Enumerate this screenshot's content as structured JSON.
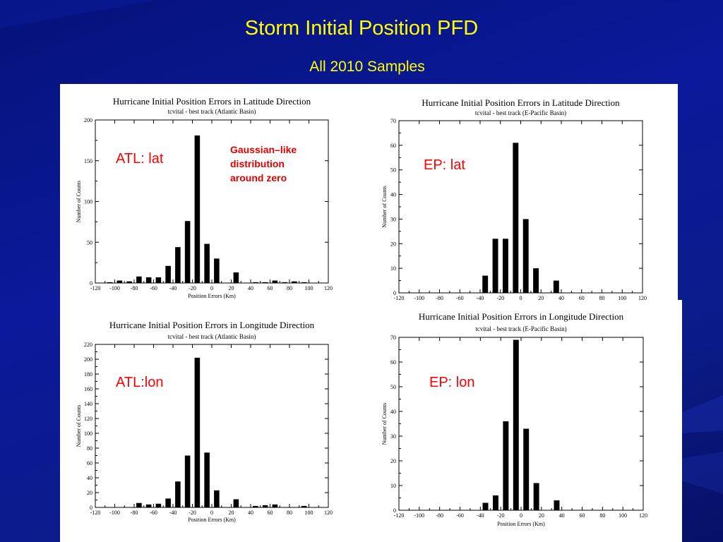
{
  "slide": {
    "title": "Storm Initial Position PFD",
    "subtitle": "All 2010 Samples"
  },
  "labels": {
    "atl_lat": "ATL: lat",
    "ep_lat": "EP: lat",
    "atl_lon": "ATL:lon",
    "ep_lon": "EP: lon",
    "note_line1": "Gaussian–like",
    "note_line2": "distribution",
    "note_line3": "around zero"
  },
  "colors": {
    "background": "#0a1a9a",
    "title": "#ffff00",
    "annotation": "#ff0000",
    "bars": "#000000"
  },
  "chart_data": [
    {
      "type": "bar",
      "title": "Hurricane Initial Position Errors in Latitude Direction",
      "subtitle": "tcvital - best track (Atlantic Basin)",
      "xlabel": "Position Errors (Km)",
      "ylabel": "Number of Counts",
      "xlim": [
        -120,
        120
      ],
      "ylim": [
        0,
        200
      ],
      "xticks": [
        -120,
        -100,
        -80,
        -60,
        -40,
        -20,
        0,
        20,
        40,
        60,
        80,
        100,
        120
      ],
      "yticks": [
        0,
        50,
        100,
        150,
        200
      ],
      "grid": false,
      "x": [
        -105,
        -95,
        -85,
        -75,
        -65,
        -55,
        -45,
        -35,
        -25,
        -15,
        -5,
        5,
        15,
        25,
        35,
        45,
        55,
        65,
        75,
        85,
        95
      ],
      "values": [
        1,
        3,
        2,
        8,
        7,
        7,
        21,
        44,
        76,
        181,
        48,
        30,
        0,
        13,
        0,
        1,
        1,
        3,
        1,
        2,
        1
      ]
    },
    {
      "type": "bar",
      "title": "Hurricane Initial Position Errors in Latitude Direction",
      "subtitle": "tcvital - best track (E-Pacific Basin)",
      "xlabel": "",
      "ylabel": "Number of Counts",
      "xlim": [
        -120,
        120
      ],
      "ylim": [
        0,
        70
      ],
      "xticks": [
        -120,
        -100,
        -80,
        -60,
        -40,
        -20,
        0,
        20,
        40,
        60,
        80,
        100,
        120
      ],
      "yticks": [
        0,
        10,
        20,
        30,
        40,
        50,
        60,
        70
      ],
      "grid": false,
      "x": [
        -35,
        -25,
        -15,
        -5,
        5,
        15,
        25,
        35
      ],
      "values": [
        7,
        22,
        22,
        61,
        30,
        10,
        0,
        5
      ]
    },
    {
      "type": "bar",
      "title": "Hurricane Initial Position Errors in Longitude Direction",
      "subtitle": "tcvital - best track (Atlantic  Basin)",
      "xlabel": "Position Errors (Km)",
      "ylabel": "Number of Counts",
      "xlim": [
        -120,
        120
      ],
      "ylim": [
        0,
        220
      ],
      "xticks": [
        -120,
        -100,
        -80,
        -60,
        -40,
        -20,
        0,
        20,
        40,
        60,
        80,
        100,
        120
      ],
      "yticks": [
        0,
        20,
        40,
        60,
        80,
        100,
        120,
        140,
        160,
        180,
        200,
        220
      ],
      "grid": false,
      "x": [
        -75,
        -65,
        -55,
        -45,
        -35,
        -25,
        -15,
        -5,
        5,
        15,
        25,
        35,
        45,
        55,
        65,
        75,
        85,
        95
      ],
      "values": [
        6,
        4,
        5,
        12,
        35,
        70,
        202,
        74,
        23,
        0,
        11,
        0,
        2,
        3,
        4,
        0,
        0,
        2
      ]
    },
    {
      "type": "bar",
      "title": "Hurricane Initial Position Errors in Longitude Direction",
      "subtitle": "tcvital - best track (E-Pacific  Basin)",
      "xlabel": "Position Errors (Km)",
      "ylabel": "Number of Counts",
      "xlim": [
        -120,
        120
      ],
      "ylim": [
        0,
        70
      ],
      "xticks": [
        -120,
        -100,
        -80,
        -60,
        -40,
        -20,
        0,
        20,
        40,
        60,
        80,
        100,
        120
      ],
      "yticks": [
        0,
        10,
        20,
        30,
        40,
        50,
        60,
        70
      ],
      "grid": false,
      "x": [
        -35,
        -25,
        -15,
        -5,
        5,
        15,
        25,
        35
      ],
      "values": [
        3,
        6,
        36,
        69,
        33,
        11,
        0,
        4
      ]
    }
  ]
}
